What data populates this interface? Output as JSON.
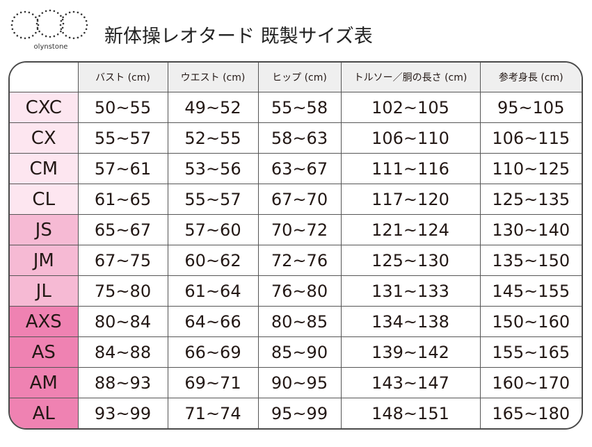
{
  "brand": {
    "name": "olynstone",
    "logo_icon": "dotted-rings-logo"
  },
  "title": "新体操レオタード 既製サイズ表",
  "table": {
    "headers": [
      "",
      "バスト (cm)",
      "ウエスト (cm)",
      "ヒップ (cm)",
      "トルソー／胴の長さ (cm)",
      "参考身長 (cm)"
    ],
    "rows": [
      {
        "size": "CXC",
        "group": "c",
        "values": [
          "50~55",
          "49~52",
          "55~58",
          "102~105",
          "95~105"
        ]
      },
      {
        "size": "CX",
        "group": "c",
        "values": [
          "55~57",
          "52~55",
          "58~63",
          "106~110",
          "106~115"
        ]
      },
      {
        "size": "CM",
        "group": "c",
        "values": [
          "57~61",
          "53~56",
          "63~67",
          "111~116",
          "110~125"
        ]
      },
      {
        "size": "CL",
        "group": "c",
        "values": [
          "61~65",
          "55~57",
          "67~70",
          "117~120",
          "125~135"
        ]
      },
      {
        "size": "JS",
        "group": "j",
        "values": [
          "65~67",
          "57~60",
          "70~72",
          "121~124",
          "130~140"
        ]
      },
      {
        "size": "JM",
        "group": "j",
        "values": [
          "67~75",
          "60~62",
          "72~76",
          "125~130",
          "135~150"
        ]
      },
      {
        "size": "JL",
        "group": "j",
        "values": [
          "75~80",
          "61~64",
          "76~80",
          "131~133",
          "145~155"
        ]
      },
      {
        "size": "AXS",
        "group": "a",
        "values": [
          "80~84",
          "64~66",
          "80~85",
          "134~138",
          "150~160"
        ]
      },
      {
        "size": "AS",
        "group": "a",
        "values": [
          "84~88",
          "66~69",
          "85~90",
          "139~142",
          "155~165"
        ]
      },
      {
        "size": "AM",
        "group": "a",
        "values": [
          "88~93",
          "69~71",
          "90~95",
          "143~147",
          "160~170"
        ]
      },
      {
        "size": "AL",
        "group": "a",
        "values": [
          "93~99",
          "71~74",
          "95~99",
          "148~151",
          "165~180"
        ]
      }
    ]
  },
  "colors": {
    "child": "#fde6f0",
    "junior": "#f6bad4",
    "adult": "#ef82b2",
    "header": "#efefef",
    "border": "#555555"
  }
}
